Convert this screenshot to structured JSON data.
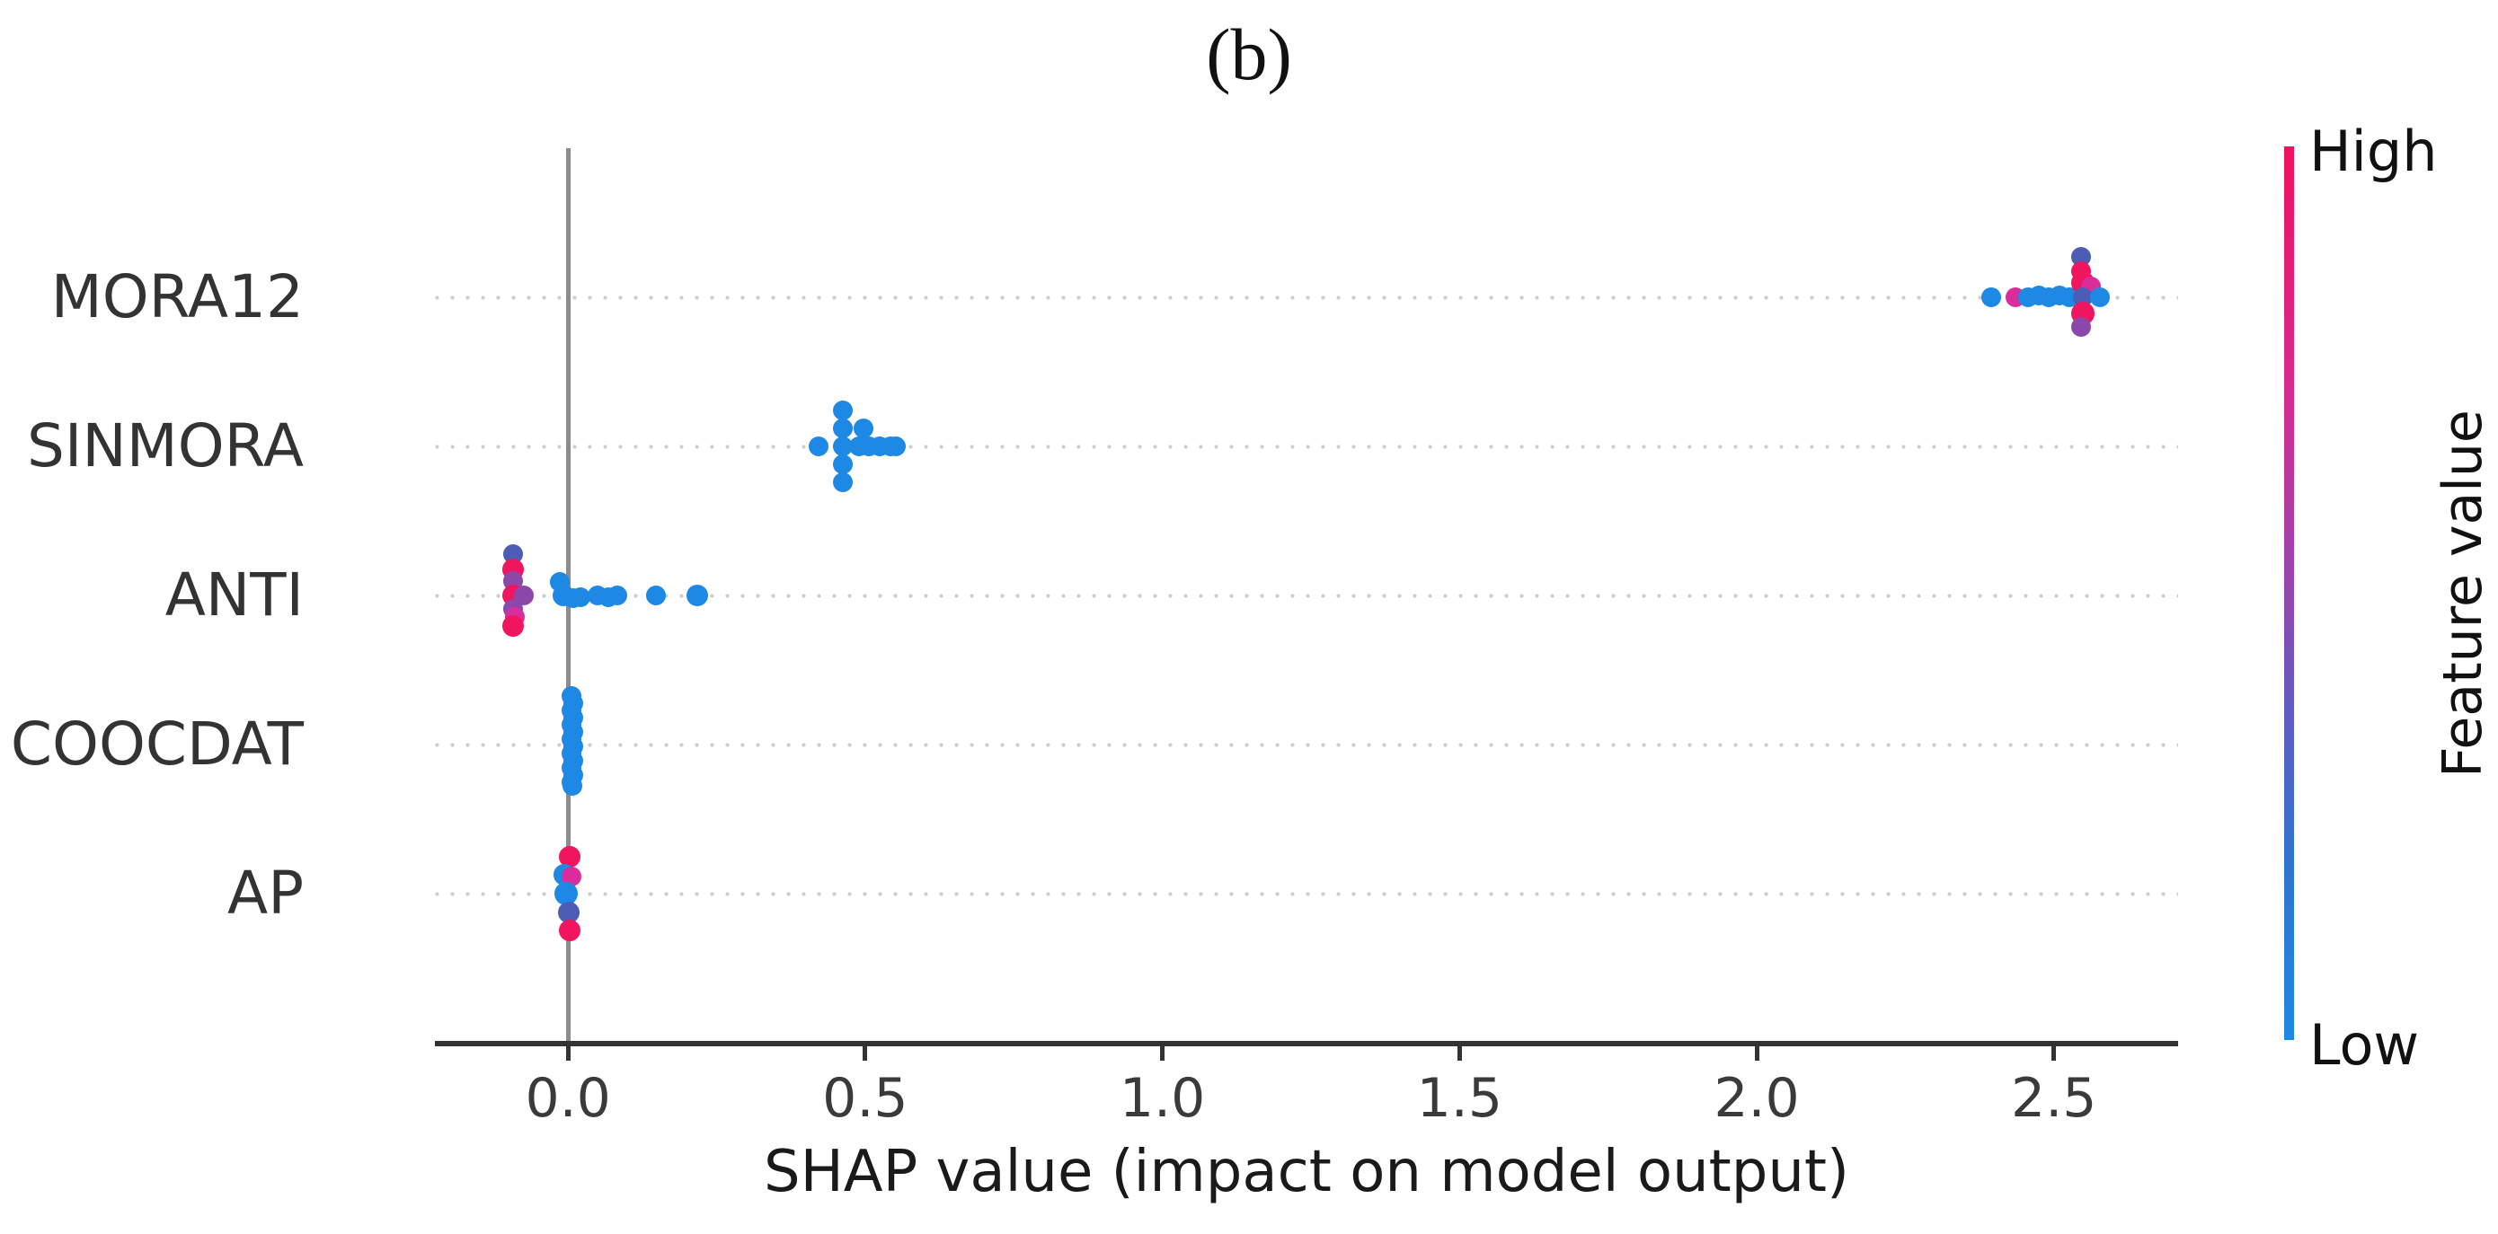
{
  "figure": {
    "panel_label": "(b)",
    "background_color": "#ffffff"
  },
  "chart_data": {
    "type": "scatter",
    "variant": "shap_summary_beeswarm",
    "title": "(b)",
    "xlabel": "SHAP value (impact on model output)",
    "x_tick_labels": [
      "0.0",
      "0.5",
      "1.0",
      "1.5",
      "2.0",
      "2.5"
    ],
    "x_tick_values": [
      0.0,
      0.5,
      1.0,
      1.5,
      2.0,
      2.5
    ],
    "xlim": [
      -0.224,
      2.709
    ],
    "grid": "horizontal dotted line per feature row",
    "legend_position": "right-side vertical colorbar",
    "features": [
      "MORA12",
      "SINMORA",
      "ANTI",
      "COOCDAT",
      "AP"
    ],
    "colorbar": {
      "label": "Feature value",
      "high": "High",
      "low": "Low",
      "high_color": "#F0115F",
      "low_color": "#1E88E5",
      "gradient_stops": [
        [
          "#F0115F",
          0
        ],
        [
          "#D62B93",
          28
        ],
        [
          "#9A44AD",
          48
        ],
        [
          "#5F5DC1",
          64
        ],
        [
          "#2F74D0",
          80
        ],
        [
          "#1E88E5",
          100
        ]
      ]
    },
    "palette": {
      "blue": "#1E88E5",
      "crimson": "#F0155F",
      "magenta": "#DB2C9C",
      "purple": "#8C48A8",
      "indigo": "#4D5DB5"
    },
    "colors": {
      "axis": "#333333",
      "zero_line": "#8C8C8C",
      "gridline": "#CDCDCD",
      "text": "#333333"
    },
    "points": {
      "MORA12": [
        {
          "x": 2.394,
          "dy": 0,
          "c": "blue"
        },
        {
          "x": 2.435,
          "dy": 0,
          "c": "magenta"
        },
        {
          "x": 2.456,
          "dy": 0,
          "c": "blue"
        },
        {
          "x": 2.474,
          "dy": -2,
          "c": "blue"
        },
        {
          "x": 2.491,
          "dy": 0,
          "c": "blue"
        },
        {
          "x": 2.509,
          "dy": -2,
          "c": "blue"
        },
        {
          "x": 2.526,
          "dy": 0,
          "c": "blue"
        },
        {
          "x": 2.546,
          "dy": -45,
          "c": "indigo"
        },
        {
          "x": 2.546,
          "dy": -29,
          "c": "crimson"
        },
        {
          "x": 2.549,
          "dy": -16,
          "c": "crimson",
          "r": 13
        },
        {
          "x": 2.563,
          "dy": -12,
          "c": "magenta"
        },
        {
          "x": 2.548,
          "dy": 0,
          "c": "indigo"
        },
        {
          "x": 2.577,
          "dy": 0,
          "c": "blue"
        },
        {
          "x": 2.549,
          "dy": 18,
          "c": "crimson",
          "r": 13
        },
        {
          "x": 2.546,
          "dy": 33,
          "c": "purple"
        }
      ],
      "SINMORA": [
        {
          "x": 0.422,
          "dy": 0,
          "c": "blue"
        },
        {
          "x": 0.462,
          "dy": -40,
          "c": "blue"
        },
        {
          "x": 0.462,
          "dy": -20,
          "c": "blue"
        },
        {
          "x": 0.463,
          "dy": 0,
          "c": "blue"
        },
        {
          "x": 0.462,
          "dy": 20,
          "c": "blue"
        },
        {
          "x": 0.462,
          "dy": 40,
          "c": "blue"
        },
        {
          "x": 0.489,
          "dy": 0,
          "c": "blue"
        },
        {
          "x": 0.497,
          "dy": -20,
          "c": "blue"
        },
        {
          "x": 0.506,
          "dy": 0,
          "c": "blue"
        },
        {
          "x": 0.524,
          "dy": 0,
          "c": "blue"
        },
        {
          "x": 0.542,
          "dy": 0,
          "c": "blue"
        },
        {
          "x": 0.551,
          "dy": 0,
          "c": "blue"
        }
      ],
      "ANTI": [
        {
          "x": -0.092,
          "dy": -46,
          "c": "indigo"
        },
        {
          "x": -0.092,
          "dy": -29,
          "c": "crimson",
          "r": 12
        },
        {
          "x": -0.092,
          "dy": -16,
          "c": "purple"
        },
        {
          "x": -0.093,
          "dy": 0,
          "c": "crimson",
          "r": 12
        },
        {
          "x": -0.075,
          "dy": 0,
          "c": "purple"
        },
        {
          "x": -0.092,
          "dy": 15,
          "c": "purple"
        },
        {
          "x": -0.09,
          "dy": 24,
          "c": "magenta"
        },
        {
          "x": -0.092,
          "dy": 34,
          "c": "crimson",
          "r": 12
        },
        {
          "x": -0.014,
          "dy": -15,
          "c": "blue"
        },
        {
          "x": -0.008,
          "dy": 0,
          "c": "blue",
          "r": 12
        },
        {
          "x": 0.009,
          "dy": 3,
          "c": "blue"
        },
        {
          "x": 0.021,
          "dy": 2,
          "c": "blue"
        },
        {
          "x": 0.05,
          "dy": 0,
          "c": "blue"
        },
        {
          "x": 0.068,
          "dy": 2,
          "c": "blue"
        },
        {
          "x": 0.083,
          "dy": 0,
          "c": "blue"
        },
        {
          "x": 0.148,
          "dy": 0,
          "c": "blue"
        },
        {
          "x": 0.217,
          "dy": 0,
          "c": "blue",
          "r": 12
        }
      ],
      "COOCDAT": [
        {
          "x": 0.006,
          "dy": -54,
          "c": "blue"
        },
        {
          "x": 0.009,
          "dy": -46,
          "c": "blue"
        },
        {
          "x": 0.006,
          "dy": -38,
          "c": "blue"
        },
        {
          "x": 0.009,
          "dy": -30,
          "c": "blue"
        },
        {
          "x": 0.006,
          "dy": -22,
          "c": "blue"
        },
        {
          "x": 0.009,
          "dy": -14,
          "c": "blue"
        },
        {
          "x": 0.006,
          "dy": -6,
          "c": "blue"
        },
        {
          "x": 0.009,
          "dy": 2,
          "c": "blue"
        },
        {
          "x": 0.006,
          "dy": 10,
          "c": "blue"
        },
        {
          "x": 0.009,
          "dy": 18,
          "c": "blue"
        },
        {
          "x": 0.006,
          "dy": 26,
          "c": "blue"
        },
        {
          "x": 0.009,
          "dy": 34,
          "c": "blue"
        },
        {
          "x": 0.006,
          "dy": 42,
          "c": "blue"
        },
        {
          "x": 0.008,
          "dy": 46,
          "c": "blue"
        }
      ],
      "AP": [
        {
          "x": 0.003,
          "dy": -41,
          "c": "crimson",
          "r": 12
        },
        {
          "x": -0.007,
          "dy": -21,
          "c": "blue",
          "r": 12
        },
        {
          "x": 0.006,
          "dy": -19,
          "c": "magenta"
        },
        {
          "x": -0.003,
          "dy": 0,
          "c": "blue",
          "r": 13
        },
        {
          "x": 0.002,
          "dy": 21,
          "c": "indigo",
          "r": 12
        },
        {
          "x": 0.003,
          "dy": 41,
          "c": "crimson",
          "r": 12
        }
      ]
    }
  }
}
